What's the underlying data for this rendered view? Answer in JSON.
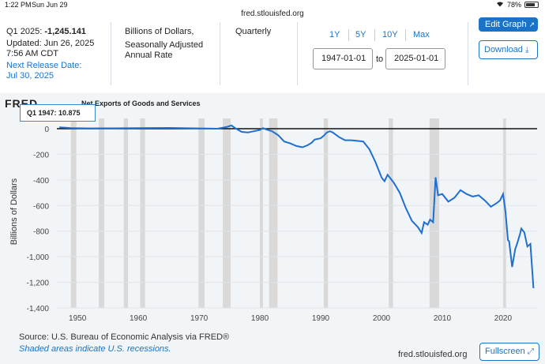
{
  "statusbar": {
    "time": "1:22 PM",
    "date": "Sun Jun 29",
    "battery": "78%"
  },
  "browser": {
    "url": "fred.stlouisfed.org"
  },
  "info": {
    "latest": "Q1 2025: ",
    "latest_value": "-1,245.141",
    "updated": "Updated: Jun 26, 2025",
    "updated_time": "7:56 AM CDT",
    "next_release_label": "Next Release Date:",
    "next_release_date": "Jul 30, 2025",
    "units_line1": "Billions of Dollars,",
    "units_line2": "Seasonally Adjusted",
    "units_line3": "Annual Rate",
    "frequency": "Quarterly"
  },
  "range": {
    "buttons": [
      "1Y",
      "5Y",
      "10Y",
      "Max"
    ],
    "start": "1947-01-01",
    "to": "to",
    "end": "2025-01-01"
  },
  "actions": {
    "edit_graph": "Edit Graph",
    "download": "Download",
    "fullscreen": "Fullscreen"
  },
  "graph": {
    "logo": "FRED",
    "tooltip": "Q1 1947:  10.875",
    "source": "Source: U.S. Bureau of Economic Analysis via FRED®",
    "shaded_note": "Shaded areas indicate U.S. recessions.",
    "footer_url": "fred.stlouisfed.org"
  },
  "chart_data": {
    "type": "line",
    "title": "Net Exports of Goods and Services",
    "ylabel": "Billions of Dollars",
    "xlabel": "",
    "xlim": [
      1946.6,
      2025.6
    ],
    "ylim": [
      -1400,
      80
    ],
    "yticks": [
      0,
      -200,
      -400,
      -600,
      -800,
      -1000,
      -1200,
      -1400
    ],
    "ytick_labels": [
      "0",
      "-200",
      "-400",
      "-600",
      "-800",
      "-1,000",
      "-1,200",
      "-1,400"
    ],
    "xticks": [
      1950,
      1960,
      1970,
      1980,
      1990,
      2000,
      2010,
      2020
    ],
    "line_color": "#1f6fd1",
    "recession_color": "#d9d9d9",
    "recessions": [
      [
        1948.9,
        1949.8
      ],
      [
        1953.5,
        1954.4
      ],
      [
        1957.6,
        1958.3
      ],
      [
        1960.3,
        1961.1
      ],
      [
        1969.9,
        1970.9
      ],
      [
        1973.9,
        1975.2
      ],
      [
        1980.0,
        1980.5
      ],
      [
        1981.5,
        1982.9
      ],
      [
        1990.5,
        1991.2
      ],
      [
        2001.2,
        2001.9
      ],
      [
        2007.9,
        2009.5
      ],
      [
        2020.0,
        2020.5
      ]
    ],
    "series": [
      {
        "x": [
          1947.0,
          1949,
          1952,
          1956,
          1960,
          1965,
          1970,
          1973,
          1974.5,
          1975.3,
          1976,
          1977,
          1978,
          1979,
          1980,
          1980.5,
          1981,
          1982,
          1983,
          1984,
          1985,
          1986,
          1987,
          1987.8,
          1988.5,
          1989,
          1990,
          1990.5,
          1991,
          1991.5,
          1992,
          1993,
          1994,
          1995,
          1996,
          1997,
          1998,
          1999,
          2000,
          2000.5,
          2001,
          2002,
          2003,
          2004,
          2005,
          2006,
          2006.6,
          2007,
          2007.6,
          2008,
          2008.5,
          2008.9,
          2009.3,
          2010,
          2011,
          2012,
          2013,
          2014,
          2015,
          2016,
          2017,
          2018,
          2019,
          2019.5,
          2020.0,
          2020.4,
          2020.8,
          2021,
          2021.5,
          2022,
          2022.3,
          2022.8,
          2023,
          2023.5,
          2024,
          2024.5,
          2025.0
        ],
        "y": [
          10.9,
          5,
          2,
          3,
          4,
          6,
          2,
          0,
          13,
          25,
          2,
          -25,
          -30,
          -20,
          -10,
          5,
          -5,
          -20,
          -50,
          -100,
          -115,
          -135,
          -145,
          -130,
          -110,
          -85,
          -75,
          -55,
          -30,
          -20,
          -30,
          -65,
          -90,
          -90,
          -95,
          -100,
          -160,
          -260,
          -380,
          -410,
          -360,
          -420,
          -500,
          -620,
          -720,
          -770,
          -815,
          -730,
          -750,
          -710,
          -730,
          -380,
          -520,
          -510,
          -570,
          -540,
          -480,
          -510,
          -530,
          -520,
          -560,
          -610,
          -580,
          -560,
          -510,
          -650,
          -870,
          -880,
          -1080,
          -940,
          -900,
          -820,
          -780,
          -810,
          -920,
          -900,
          -1245.1
        ]
      }
    ]
  }
}
